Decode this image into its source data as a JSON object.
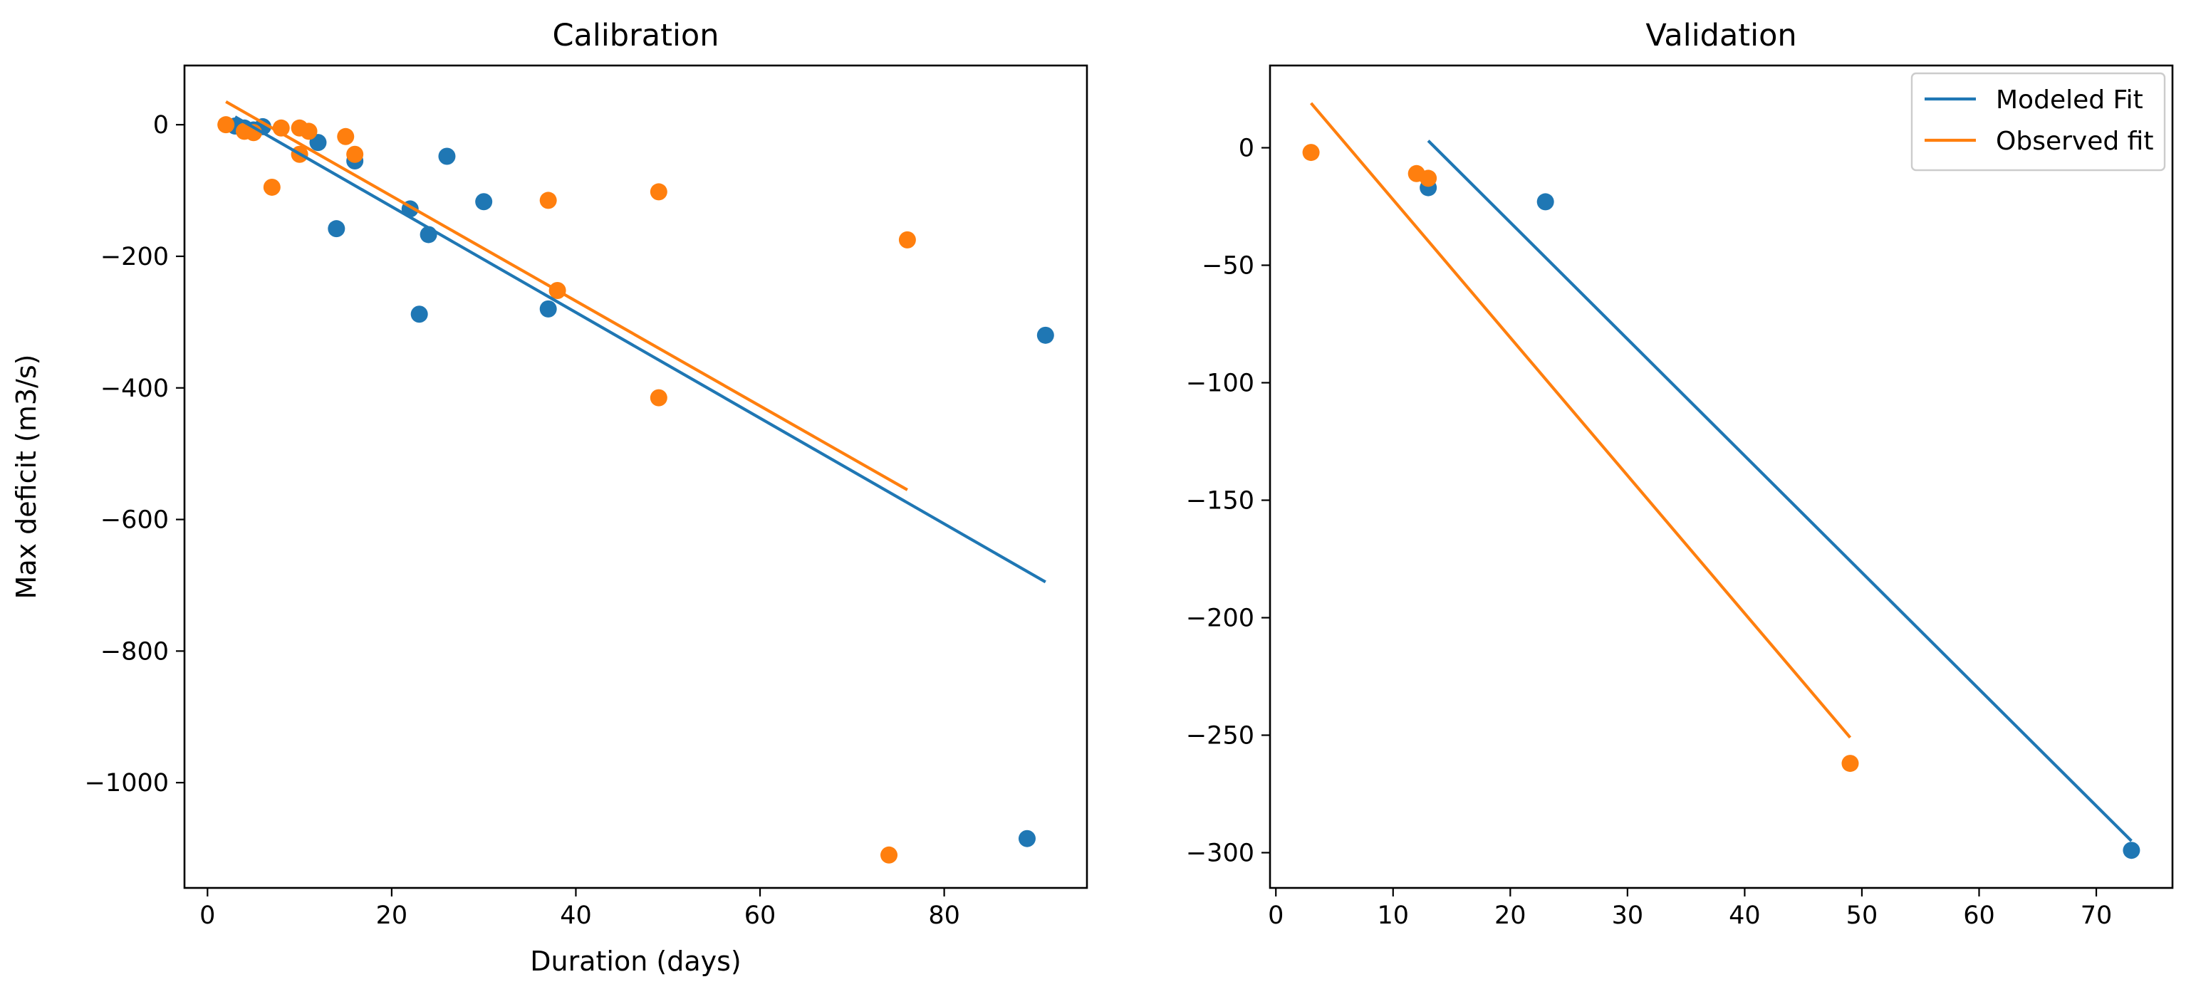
{
  "chart_data": [
    {
      "type": "scatter",
      "title": "Calibration",
      "xlabel": "Duration (days)",
      "ylabel": "Max deficit (m3/s)",
      "xlim": [
        -2.5,
        95.5
      ],
      "ylim": [
        -1160,
        90
      ],
      "xticks": [
        0,
        20,
        40,
        60,
        80
      ],
      "yticks": [
        0,
        -200,
        -400,
        -600,
        -800,
        -1000
      ],
      "xtick_labels": [
        "0",
        "20",
        "40",
        "60",
        "80"
      ],
      "ytick_labels": [
        "0",
        "−200",
        "−400",
        "−600",
        "−800",
        "−1000"
      ],
      "grid": false,
      "legend": null,
      "series": [
        {
          "kind": "scatter",
          "color": "#1f77b4",
          "points": [
            [
              3,
              -2
            ],
            [
              4,
              -5
            ],
            [
              5,
              -8
            ],
            [
              6,
              -3
            ],
            [
              12,
              -27
            ],
            [
              16,
              -55
            ],
            [
              14,
              -158
            ],
            [
              22,
              -128
            ],
            [
              24,
              -167
            ],
            [
              23,
              -288
            ],
            [
              26,
              -48
            ],
            [
              30,
              -117
            ],
            [
              37,
              -280
            ],
            [
              89,
              -1085
            ],
            [
              91,
              -320
            ]
          ]
        },
        {
          "kind": "scatter",
          "color": "#ff7f0e",
          "points": [
            [
              2,
              0
            ],
            [
              4,
              -10
            ],
            [
              5,
              -12
            ],
            [
              7,
              -95
            ],
            [
              8,
              -5
            ],
            [
              10,
              -5
            ],
            [
              10,
              -45
            ],
            [
              11,
              -10
            ],
            [
              15,
              -18
            ],
            [
              16,
              -45
            ],
            [
              37,
              -115
            ],
            [
              38,
              -252
            ],
            [
              49,
              -102
            ],
            [
              49,
              -415
            ],
            [
              74,
              -1110
            ],
            [
              76,
              -175
            ]
          ]
        },
        {
          "kind": "line",
          "color": "#1f77b4",
          "points": [
            [
              3,
              12
            ],
            [
              91,
              -695
            ]
          ]
        },
        {
          "kind": "line",
          "color": "#ff7f0e",
          "points": [
            [
              2,
              35
            ],
            [
              76,
              -555
            ]
          ]
        }
      ]
    },
    {
      "type": "scatter",
      "title": "Validation",
      "xlabel": "",
      "ylabel": "",
      "xlim": [
        -0.5,
        76.5
      ],
      "ylim": [
        -315,
        35
      ],
      "xticks": [
        0,
        10,
        20,
        30,
        40,
        50,
        60,
        70
      ],
      "yticks": [
        0,
        -50,
        -100,
        -150,
        -200,
        -250,
        -300
      ],
      "xtick_labels": [
        "0",
        "10",
        "20",
        "30",
        "40",
        "50",
        "60",
        "70"
      ],
      "ytick_labels": [
        "0",
        "−50",
        "−100",
        "−150",
        "−200",
        "−250",
        "−300"
      ],
      "grid": false,
      "legend": {
        "position": "top-right",
        "entries": [
          {
            "label": "Modeled Fit",
            "color": "#1f77b4"
          },
          {
            "label": "Observed fit",
            "color": "#ff7f0e"
          }
        ]
      },
      "series": [
        {
          "kind": "scatter",
          "color": "#1f77b4",
          "points": [
            [
              13,
              -17
            ],
            [
              23,
              -23
            ],
            [
              73,
              -299
            ]
          ]
        },
        {
          "kind": "scatter",
          "color": "#ff7f0e",
          "points": [
            [
              3,
              -2
            ],
            [
              12,
              -11
            ],
            [
              13,
              -13
            ],
            [
              49,
              -262
            ]
          ]
        },
        {
          "kind": "line",
          "color": "#1f77b4",
          "points": [
            [
              13,
              3
            ],
            [
              73,
              -295
            ]
          ]
        },
        {
          "kind": "line",
          "color": "#ff7f0e",
          "points": [
            [
              3,
              19
            ],
            [
              49,
              -251
            ]
          ]
        }
      ]
    }
  ]
}
